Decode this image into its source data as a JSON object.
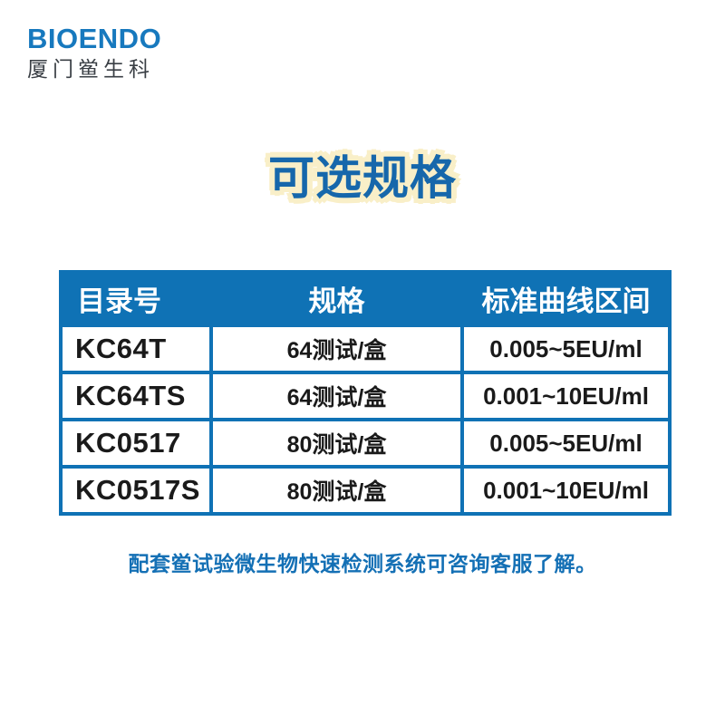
{
  "logo": {
    "brand": "BIOENDO",
    "subtitle": "厦门鲎生科"
  },
  "title": "可选规格",
  "table": {
    "headers": [
      "目录号",
      "规格",
      "标准曲线区间"
    ],
    "rows": [
      [
        "KC64T",
        "64测试/盒",
        "0.005~5EU/ml"
      ],
      [
        "KC64TS",
        "64测试/盒",
        "0.001~10EU/ml"
      ],
      [
        "KC0517",
        "80测试/盒",
        "0.005~5EU/ml"
      ],
      [
        "KC0517S",
        "80测试/盒",
        "0.001~10EU/ml"
      ]
    ]
  },
  "note": "配套鲎试验微生物快速检测系统可咨询客服了解。",
  "colors": {
    "table_blue": "#0F72B5",
    "logo_blue": "#1779BE",
    "title_blue": "#1667AB",
    "title_outline_cream": "#F9EFC8",
    "note_blue": "#1470B5",
    "cell_text": "#1A1A1A",
    "logo_subtitle_gray": "#3A3F45"
  }
}
